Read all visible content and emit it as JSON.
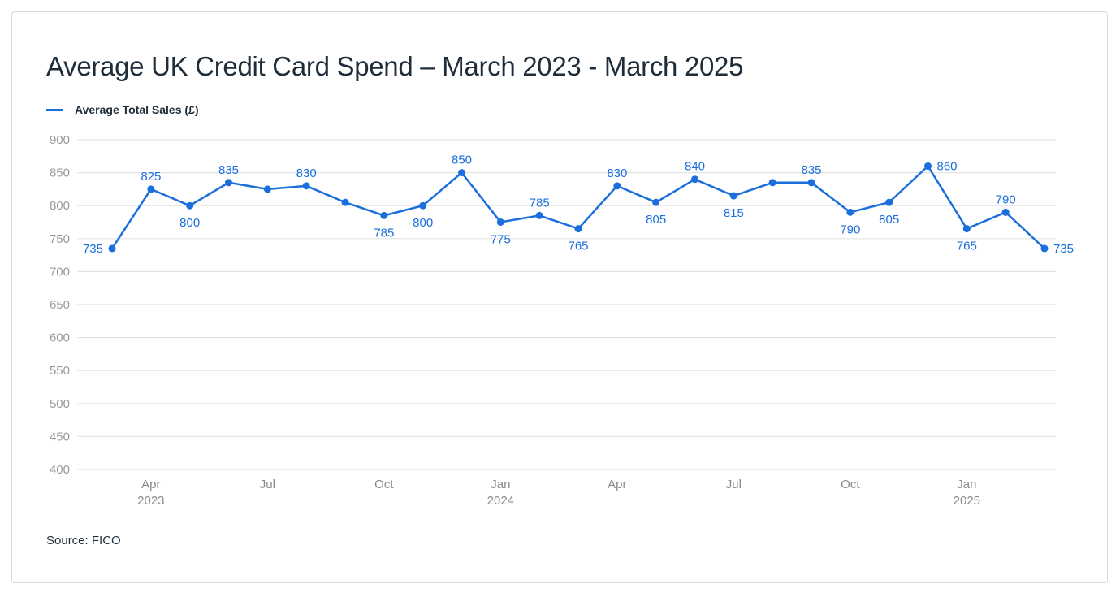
{
  "chart_data": {
    "type": "line",
    "title": "Average UK Credit Card Spend – March 2023 - March 2025",
    "xlabel": "",
    "ylabel": "",
    "ylim": [
      400,
      900
    ],
    "yticks": [
      900,
      850,
      800,
      750,
      700,
      650,
      600,
      550,
      500,
      450,
      400
    ],
    "grid": true,
    "legend_position": "top-left",
    "x": [
      "Mar 2023",
      "Apr 2023",
      "May 2023",
      "Jun 2023",
      "Jul 2023",
      "Aug 2023",
      "Sep 2023",
      "Oct 2023",
      "Nov 2023",
      "Dec 2023",
      "Jan 2024",
      "Feb 2024",
      "Mar 2024",
      "Apr 2024",
      "May 2024",
      "Jun 2024",
      "Jul 2024",
      "Aug 2024",
      "Sep 2024",
      "Oct 2024",
      "Nov 2024",
      "Dec 2024",
      "Jan 2025",
      "Feb 2025",
      "Mar 2025"
    ],
    "x_tick_labels": [
      {
        "index": 1,
        "line1": "Apr",
        "line2": "2023"
      },
      {
        "index": 4,
        "line1": "Jul",
        "line2": ""
      },
      {
        "index": 7,
        "line1": "Oct",
        "line2": ""
      },
      {
        "index": 10,
        "line1": "Jan",
        "line2": "2024"
      },
      {
        "index": 13,
        "line1": "Apr",
        "line2": ""
      },
      {
        "index": 16,
        "line1": "Jul",
        "line2": ""
      },
      {
        "index": 19,
        "line1": "Oct",
        "line2": ""
      },
      {
        "index": 22,
        "line1": "Jan",
        "line2": "2025"
      }
    ],
    "series": [
      {
        "name": "Average Total Sales (£)",
        "color": "#1a6fdc",
        "values": [
          735,
          825,
          800,
          835,
          825,
          830,
          805,
          785,
          800,
          850,
          775,
          785,
          765,
          830,
          805,
          840,
          815,
          835,
          835,
          790,
          805,
          860,
          765,
          790,
          735
        ],
        "labeled": [
          true,
          true,
          true,
          true,
          false,
          true,
          false,
          true,
          true,
          true,
          true,
          true,
          true,
          true,
          true,
          true,
          true,
          false,
          true,
          true,
          true,
          true,
          true,
          true,
          true
        ],
        "label_pos": [
          "left",
          "above",
          "below",
          "above",
          "none",
          "above",
          "none",
          "below",
          "below",
          "above",
          "below",
          "above",
          "below",
          "above",
          "below",
          "above",
          "below",
          "none",
          "above",
          "below",
          "below",
          "right",
          "below",
          "above",
          "right"
        ]
      }
    ],
    "source": "Source: FICO"
  },
  "header": {
    "title": "Average UK Credit Card Spend – March 2023 - March 2025"
  },
  "legend": {
    "label": "Average Total Sales (£)",
    "color": "#1a6fdc"
  },
  "footer": {
    "source": "Source: FICO"
  },
  "colors": {
    "line": "#1a6fdc",
    "title": "#1f2d3a",
    "grid": "#e3e3e3",
    "tick": "#9a9a9a"
  }
}
